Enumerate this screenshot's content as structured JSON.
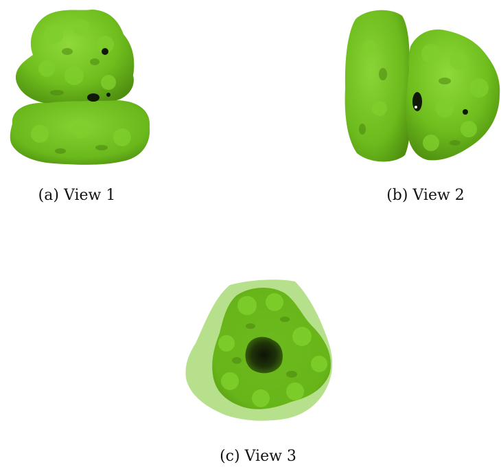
{
  "figure": {
    "panels": [
      {
        "id": "a",
        "caption": "(a) View 1"
      },
      {
        "id": "b",
        "caption": "(b) View 2"
      },
      {
        "id": "c",
        "caption": "(c) View 3"
      }
    ],
    "colors": {
      "surface": "#6fbe1e",
      "surface_dark": "#4f8f10",
      "surface_light": "#8fd93a",
      "translucent_shell": "#7cc72e",
      "cavity": "#111a08"
    }
  }
}
